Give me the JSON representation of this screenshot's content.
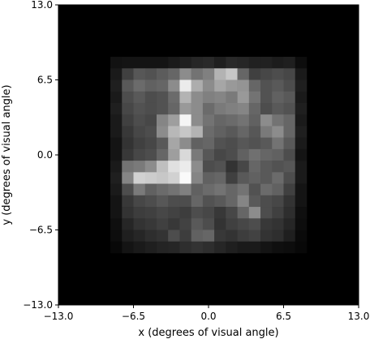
{
  "chart_data": {
    "type": "heatmap",
    "title": "",
    "xlabel": "x (degrees of visual angle)",
    "ylabel": "y (degrees of visual angle)",
    "xlim": [
      -13.0,
      13.0
    ],
    "ylim": [
      -13.0,
      13.0
    ],
    "x_ticks": [
      -13.0,
      -6.5,
      0.0,
      6.5,
      13.0
    ],
    "y_ticks": [
      -13.0,
      -6.5,
      0.0,
      6.5,
      13.0
    ],
    "x_tick_labels": [
      "−13.0",
      "−6.5",
      "0.0",
      "6.5",
      "13.0"
    ],
    "y_tick_labels": [
      "−13.0",
      "−6.5",
      "0.0",
      "6.5",
      "13.0"
    ],
    "colormap": "gray",
    "grid": false,
    "cell_size_deg": 1.0,
    "data_x_range": [
      -8.5,
      8.5
    ],
    "data_y_range": [
      -8.5,
      8.5
    ],
    "background_value": 0.0,
    "values": [
      [
        0.07,
        0.08,
        0.08,
        0.08,
        0.08,
        0.1,
        0.12,
        0.15,
        0.16,
        0.12,
        0.16,
        0.15,
        0.13,
        0.13,
        0.11,
        0.12,
        0.05
      ],
      [
        0.1,
        0.25,
        0.34,
        0.32,
        0.36,
        0.4,
        0.55,
        0.45,
        0.5,
        0.7,
        0.78,
        0.4,
        0.25,
        0.28,
        0.3,
        0.28,
        0.1
      ],
      [
        0.12,
        0.35,
        0.42,
        0.38,
        0.4,
        0.55,
        0.92,
        0.68,
        0.55,
        0.65,
        0.6,
        0.58,
        0.4,
        0.32,
        0.35,
        0.3,
        0.12
      ],
      [
        0.1,
        0.3,
        0.35,
        0.3,
        0.32,
        0.42,
        0.7,
        0.55,
        0.5,
        0.52,
        0.48,
        0.6,
        0.45,
        0.32,
        0.38,
        0.35,
        0.1
      ],
      [
        0.12,
        0.28,
        0.32,
        0.3,
        0.32,
        0.4,
        0.6,
        0.55,
        0.42,
        0.48,
        0.5,
        0.52,
        0.4,
        0.3,
        0.35,
        0.32,
        0.12
      ],
      [
        0.1,
        0.25,
        0.3,
        0.28,
        0.52,
        0.62,
        0.96,
        0.55,
        0.45,
        0.4,
        0.42,
        0.45,
        0.38,
        0.55,
        0.45,
        0.4,
        0.1
      ],
      [
        0.1,
        0.22,
        0.28,
        0.3,
        0.55,
        0.72,
        0.78,
        0.7,
        0.42,
        0.38,
        0.35,
        0.4,
        0.34,
        0.48,
        0.55,
        0.4,
        0.12
      ],
      [
        0.08,
        0.2,
        0.25,
        0.28,
        0.35,
        0.65,
        0.55,
        0.38,
        0.4,
        0.32,
        0.3,
        0.34,
        0.32,
        0.35,
        0.45,
        0.35,
        0.1
      ],
      [
        0.08,
        0.22,
        0.28,
        0.3,
        0.4,
        0.62,
        0.85,
        0.48,
        0.34,
        0.28,
        0.3,
        0.38,
        0.44,
        0.4,
        0.38,
        0.3,
        0.08
      ],
      [
        0.1,
        0.45,
        0.48,
        0.55,
        0.75,
        0.88,
        0.92,
        0.55,
        0.3,
        0.32,
        0.2,
        0.28,
        0.4,
        0.35,
        0.32,
        0.34,
        0.1
      ],
      [
        0.12,
        0.52,
        0.82,
        0.8,
        0.78,
        0.82,
        0.98,
        0.52,
        0.38,
        0.4,
        0.25,
        0.35,
        0.38,
        0.35,
        0.42,
        0.3,
        0.1
      ],
      [
        0.1,
        0.3,
        0.48,
        0.38,
        0.42,
        0.45,
        0.5,
        0.38,
        0.42,
        0.45,
        0.4,
        0.45,
        0.32,
        0.42,
        0.38,
        0.25,
        0.08
      ],
      [
        0.08,
        0.22,
        0.28,
        0.3,
        0.34,
        0.3,
        0.3,
        0.4,
        0.32,
        0.35,
        0.4,
        0.52,
        0.35,
        0.3,
        0.28,
        0.2,
        0.08
      ],
      [
        0.08,
        0.2,
        0.24,
        0.25,
        0.28,
        0.26,
        0.24,
        0.3,
        0.28,
        0.22,
        0.28,
        0.4,
        0.55,
        0.3,
        0.25,
        0.18,
        0.06
      ],
      [
        0.06,
        0.15,
        0.2,
        0.22,
        0.25,
        0.22,
        0.26,
        0.35,
        0.3,
        0.2,
        0.25,
        0.28,
        0.3,
        0.22,
        0.2,
        0.15,
        0.05
      ],
      [
        0.05,
        0.12,
        0.15,
        0.18,
        0.2,
        0.3,
        0.24,
        0.38,
        0.4,
        0.22,
        0.2,
        0.24,
        0.26,
        0.2,
        0.18,
        0.12,
        0.04
      ],
      [
        0.03,
        0.08,
        0.1,
        0.12,
        0.14,
        0.15,
        0.18,
        0.2,
        0.18,
        0.15,
        0.12,
        0.1,
        0.1,
        0.08,
        0.06,
        0.05,
        0.03
      ]
    ]
  }
}
